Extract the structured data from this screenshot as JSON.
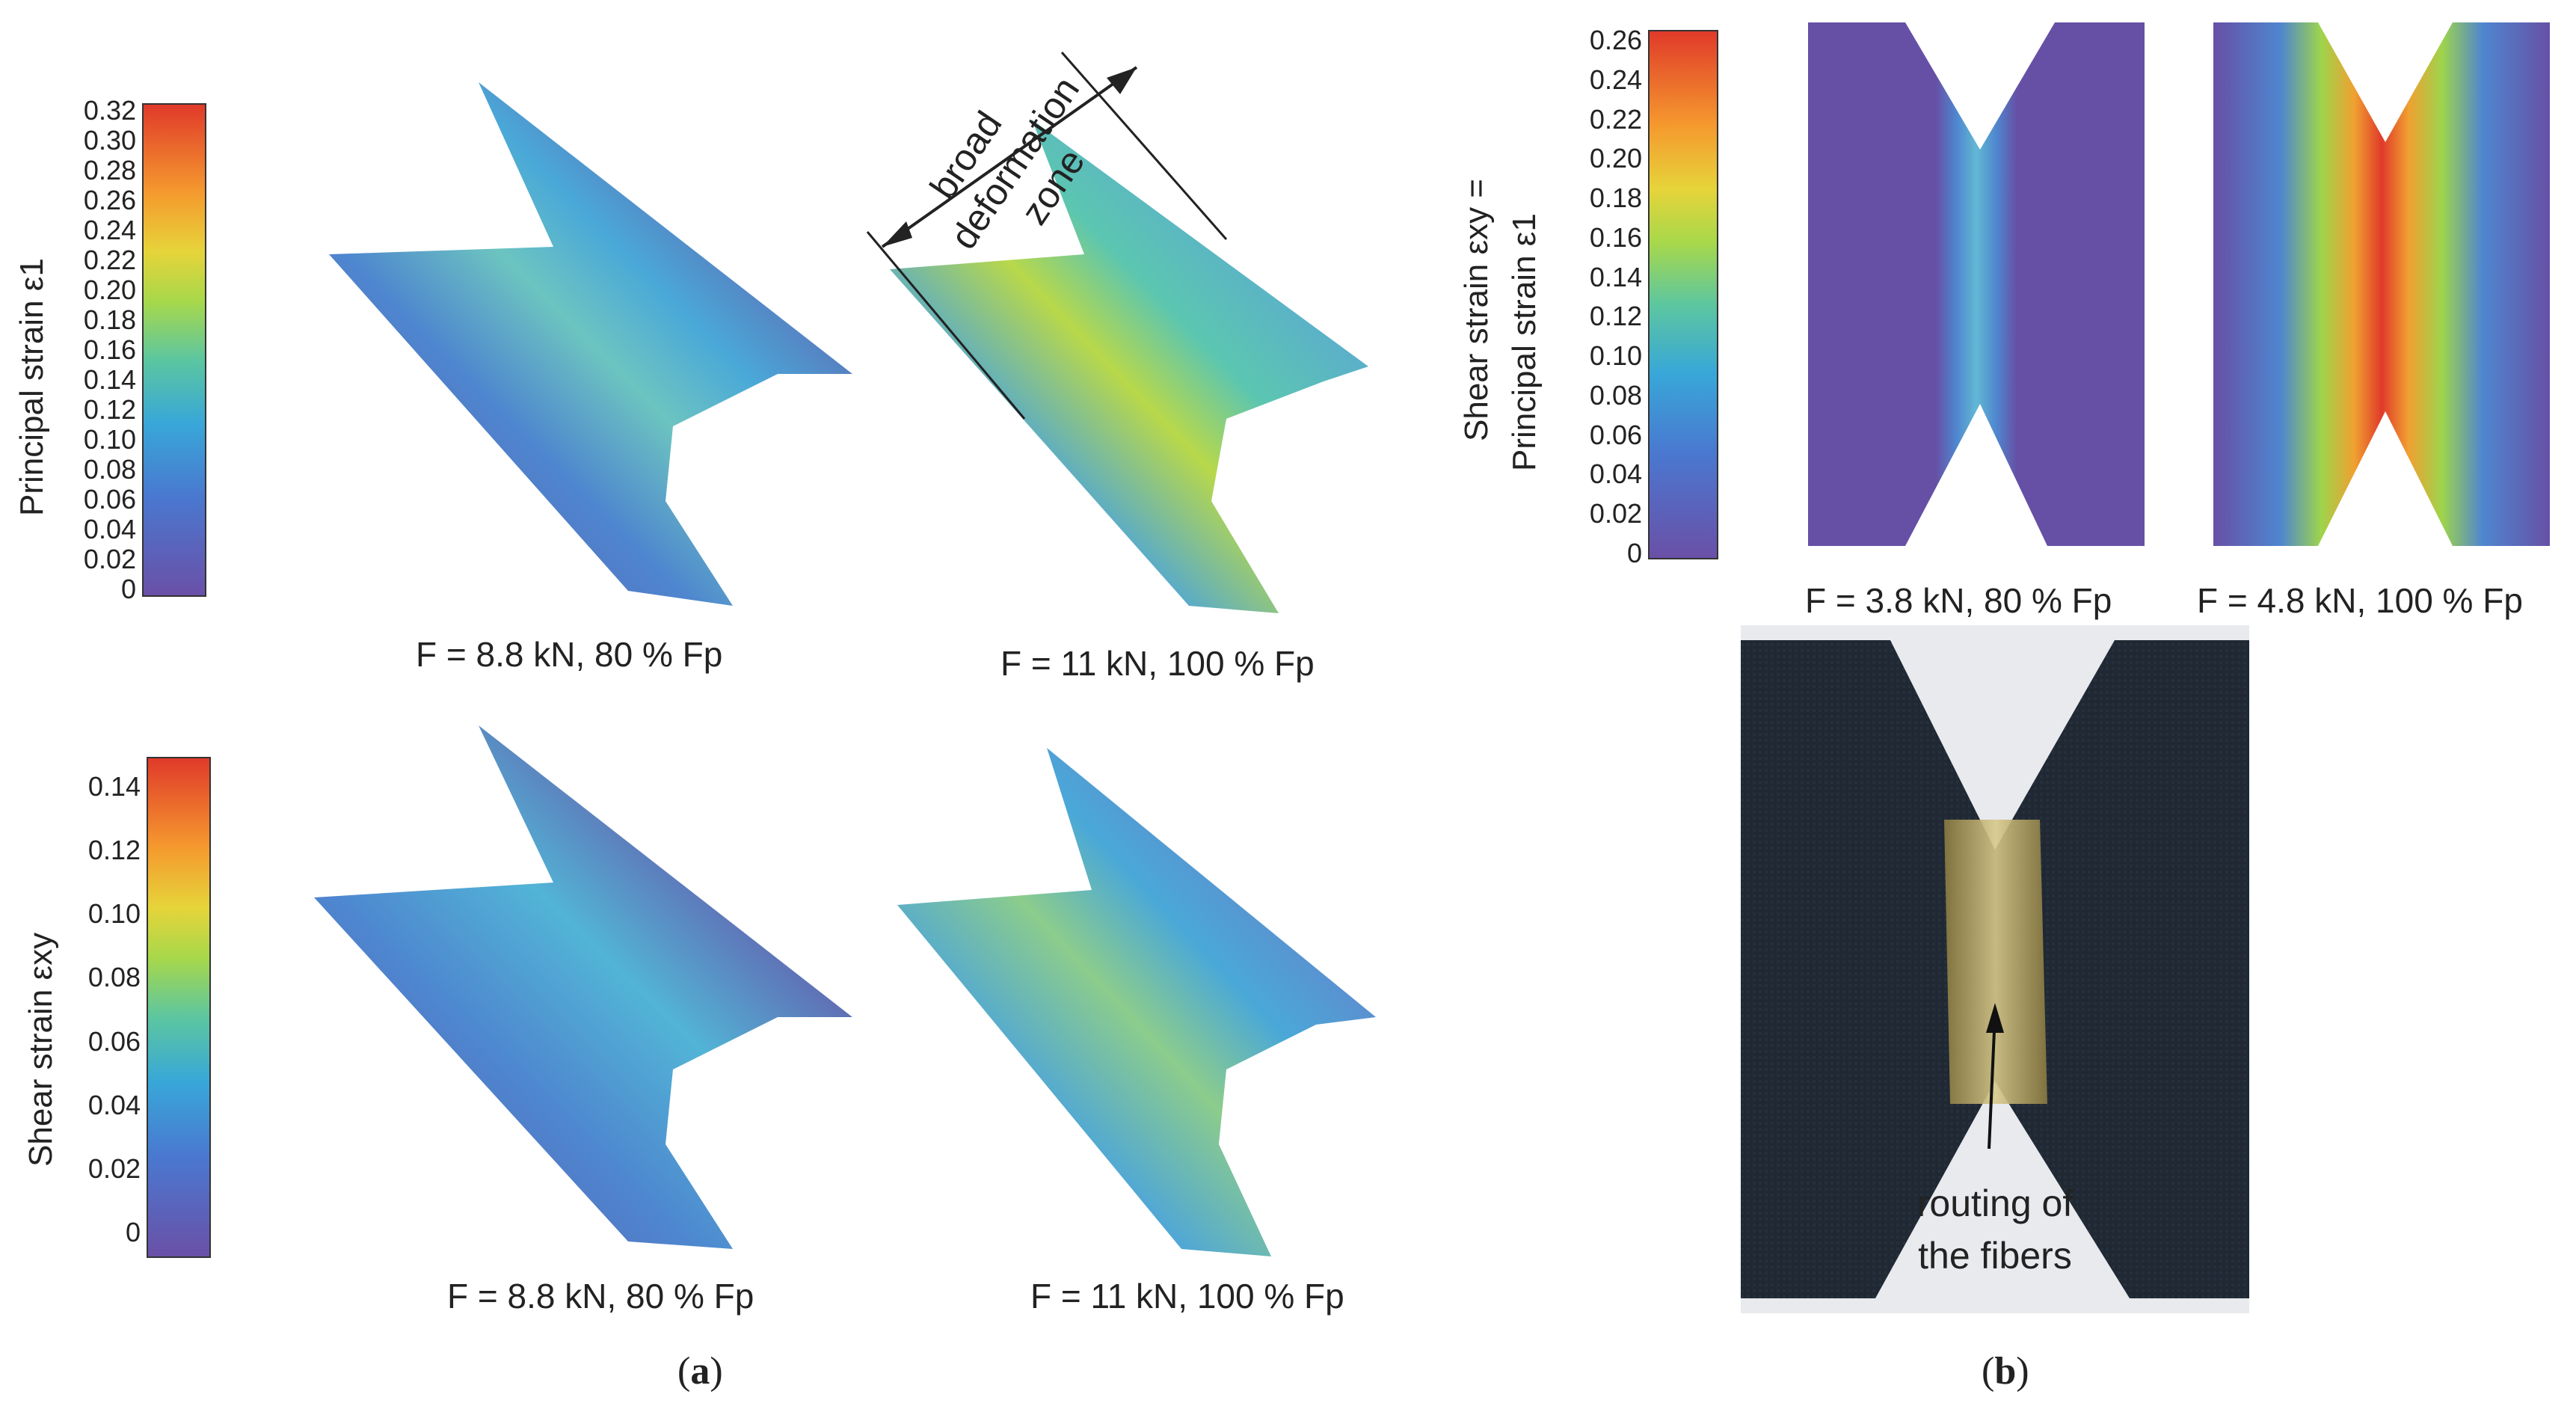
{
  "panel_a": {
    "label_open": "(",
    "label_letter": "a",
    "label_close": ")",
    "top_colorbar": {
      "title": "Principal strain ε1",
      "ticks": [
        "0.32",
        "0.30",
        "0.28",
        "0.26",
        "0.24",
        "0.22",
        "0.20",
        "0.18",
        "0.16",
        "0.14",
        "0.12",
        "0.10",
        "0.08",
        "0.06",
        "0.04",
        "0.02",
        "0"
      ]
    },
    "bottom_colorbar": {
      "title": "Shear strain εxy",
      "ticks": [
        "0.14",
        "0.12",
        "0.10",
        "0.08",
        "0.06",
        "0.04",
        "0.02",
        "0"
      ]
    },
    "captions": {
      "top_left": "F = 8.8 kN, 80 % Fp",
      "top_right": "F = 11 kN, 100 % Fp",
      "bottom_left": "F = 8.8 kN, 80 % Fp",
      "bottom_right": "F = 11 kN, 100 % Fp"
    },
    "annotation": {
      "line1": "broad",
      "line2": "deformation",
      "line3": "zone"
    }
  },
  "panel_b": {
    "label_open": "(",
    "label_letter": "b",
    "label_close": ")",
    "colorbar": {
      "title_line1": "Shear strain εxy =",
      "title_line2": "Principal strain ε1",
      "ticks": [
        "0.26",
        "0.24",
        "0.22",
        "0.20",
        "0.18",
        "0.16",
        "0.14",
        "0.12",
        "0.10",
        "0.08",
        "0.06",
        "0.04",
        "0.02",
        "0"
      ]
    },
    "captions": {
      "left": "F = 3.8 kN, 80 % Fp",
      "right": "F = 4.8 kN, 100 % Fp"
    },
    "photo_annotation": {
      "line1": "routing of",
      "line2": "the fibers"
    }
  }
}
